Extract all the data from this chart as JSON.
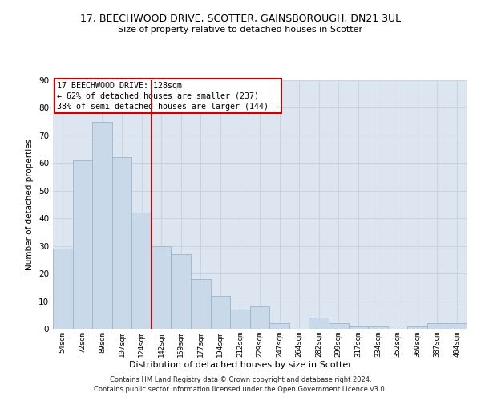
{
  "title_line1": "17, BEECHWOOD DRIVE, SCOTTER, GAINSBOROUGH, DN21 3UL",
  "title_line2": "Size of property relative to detached houses in Scotter",
  "xlabel": "Distribution of detached houses by size in Scotter",
  "ylabel": "Number of detached properties",
  "bar_labels": [
    "54sqm",
    "72sqm",
    "89sqm",
    "107sqm",
    "124sqm",
    "142sqm",
    "159sqm",
    "177sqm",
    "194sqm",
    "212sqm",
    "229sqm",
    "247sqm",
    "264sqm",
    "282sqm",
    "299sqm",
    "317sqm",
    "334sqm",
    "352sqm",
    "369sqm",
    "387sqm",
    "404sqm"
  ],
  "bar_values": [
    29,
    61,
    75,
    62,
    42,
    30,
    27,
    18,
    12,
    7,
    8,
    2,
    0,
    4,
    2,
    1,
    1,
    0,
    1,
    2,
    2
  ],
  "bar_color": "#c9d9ea",
  "bar_edgecolor": "#9ab5cc",
  "vline_index": 4,
  "vline_color": "#cc0000",
  "annotation_line1": "17 BEECHWOOD DRIVE: 128sqm",
  "annotation_line2": "← 62% of detached houses are smaller (237)",
  "annotation_line3": "38% of semi-detached houses are larger (144) →",
  "annotation_box_facecolor": "#ffffff",
  "annotation_box_edgecolor": "#cc0000",
  "grid_color": "#c8d4e2",
  "background_color": "#dde6f0",
  "ylim_max": 90,
  "yticks": [
    0,
    10,
    20,
    30,
    40,
    50,
    60,
    70,
    80,
    90
  ],
  "footer_text": "Contains HM Land Registry data © Crown copyright and database right 2024.\nContains public sector information licensed under the Open Government Licence v3.0."
}
